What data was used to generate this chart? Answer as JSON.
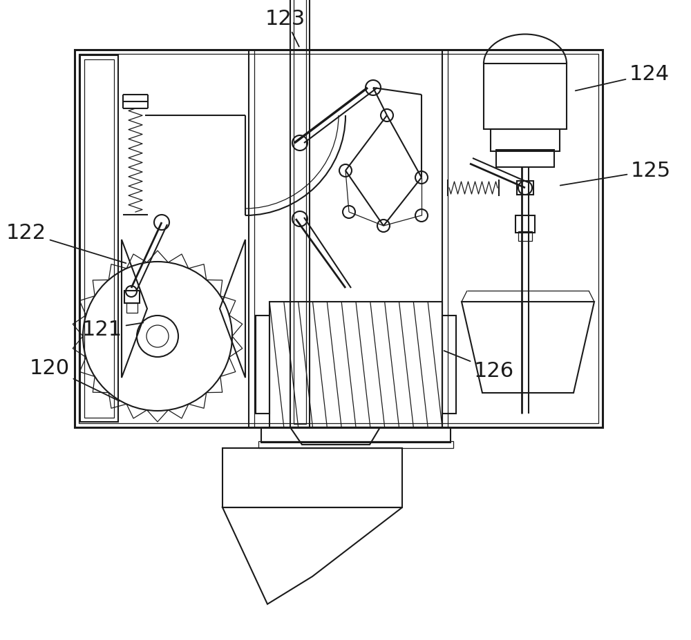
{
  "bg_color": "#ffffff",
  "lc": "#1a1a1a",
  "lw": 1.5,
  "tlw": 0.9,
  "thk": 2.2,
  "fs": 22,
  "figsize": [
    10.0,
    9.28
  ],
  "dpi": 100
}
